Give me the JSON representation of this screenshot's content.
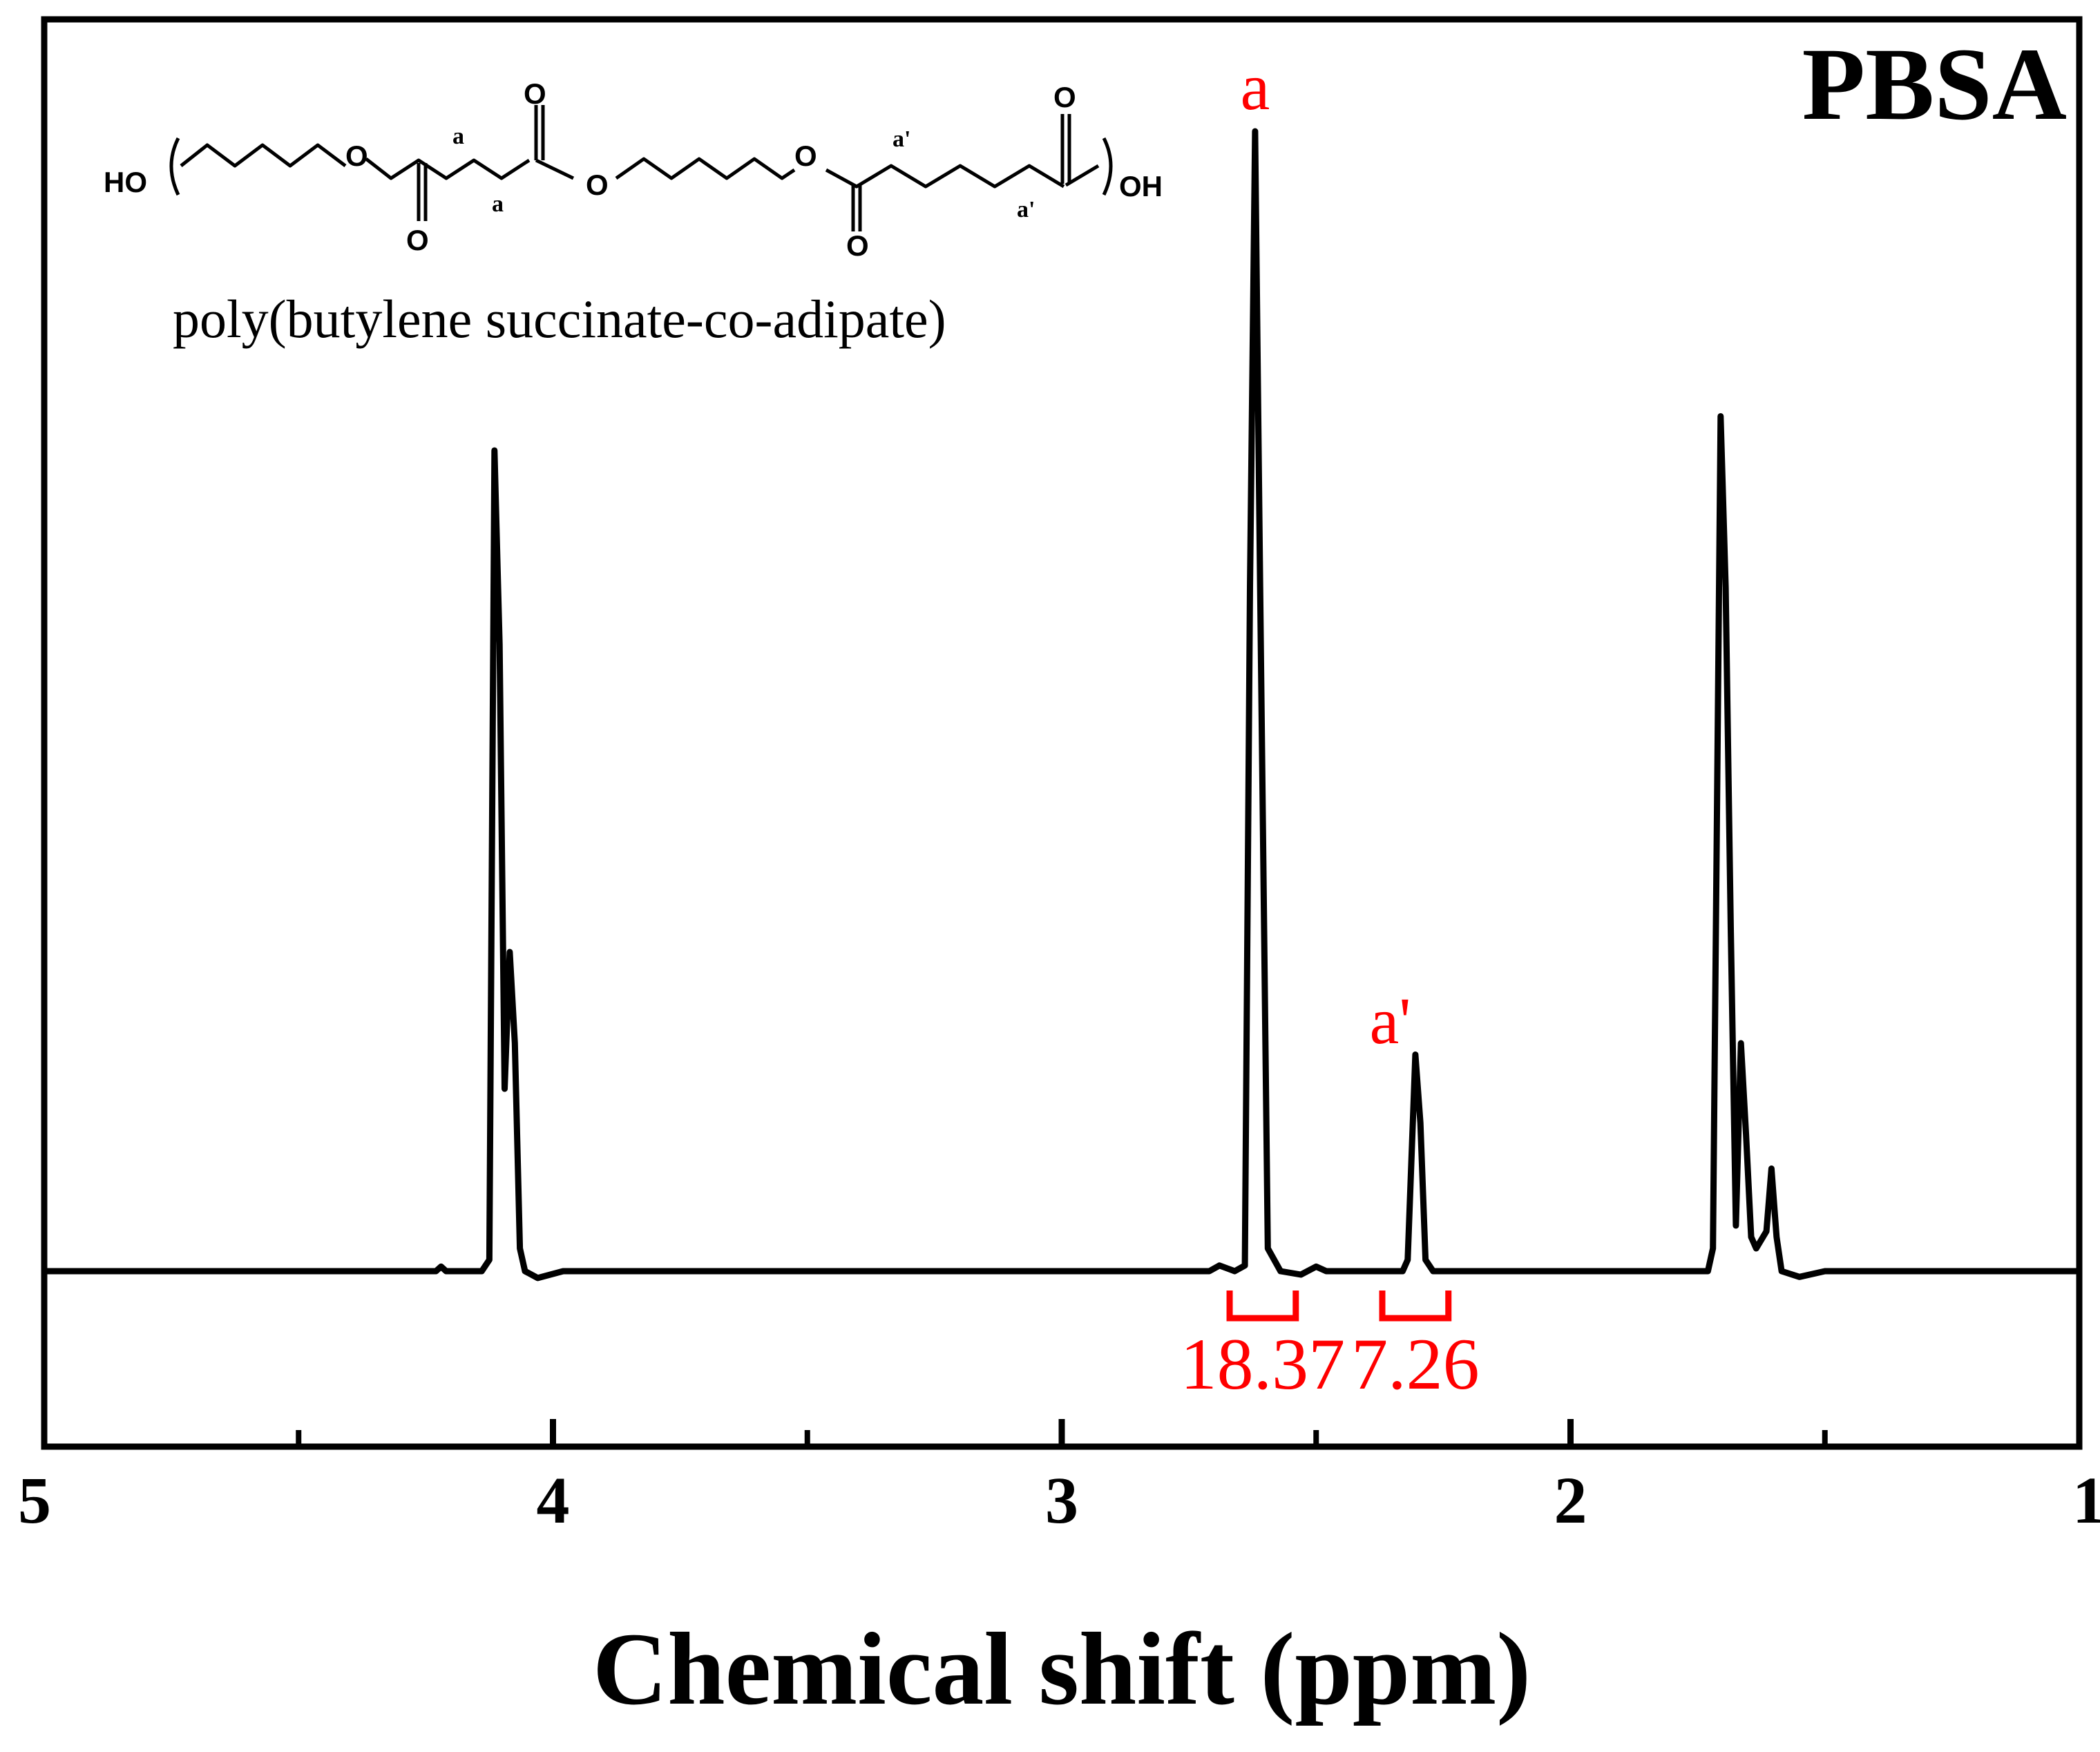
{
  "chart_data": {
    "type": "line",
    "title": "PBSA",
    "xlabel": "Chemical shift (ppm)",
    "ylabel": "",
    "xlim": [
      5,
      1
    ],
    "x_reversed": true,
    "xticks": [
      "5",
      "4",
      "3",
      "2",
      "1"
    ],
    "yticks_shown": false,
    "grid": false,
    "series": [
      {
        "points": [
          [
            5.0,
            0.0
          ],
          [
            4.23,
            0.0
          ],
          [
            4.22,
            0.004
          ],
          [
            4.21,
            0.0
          ],
          [
            4.14,
            0.0
          ],
          [
            4.125,
            0.01
          ],
          [
            4.115,
            0.72
          ],
          [
            4.105,
            0.55
          ],
          [
            4.095,
            0.16
          ],
          [
            4.085,
            0.28
          ],
          [
            4.075,
            0.2
          ],
          [
            4.065,
            0.02
          ],
          [
            4.055,
            0.0
          ],
          [
            4.03,
            -0.006
          ],
          [
            3.98,
            0.0
          ],
          [
            2.71,
            0.0
          ],
          [
            2.69,
            0.005
          ],
          [
            2.66,
            0.0
          ],
          [
            2.64,
            0.005
          ],
          [
            2.63,
            0.6
          ],
          [
            2.62,
            1.0
          ],
          [
            2.61,
            0.6
          ],
          [
            2.595,
            0.02
          ],
          [
            2.57,
            0.0
          ],
          [
            2.53,
            -0.003
          ],
          [
            2.5,
            0.004
          ],
          [
            2.48,
            0.0
          ],
          [
            2.33,
            0.0
          ],
          [
            2.32,
            0.01
          ],
          [
            2.305,
            0.19
          ],
          [
            2.295,
            0.13
          ],
          [
            2.285,
            0.01
          ],
          [
            2.27,
            0.0
          ],
          [
            1.73,
            0.0
          ],
          [
            1.72,
            0.02
          ],
          [
            1.705,
            0.75
          ],
          [
            1.695,
            0.6
          ],
          [
            1.685,
            0.3
          ],
          [
            1.675,
            0.04
          ],
          [
            1.665,
            0.2
          ],
          [
            1.655,
            0.12
          ],
          [
            1.645,
            0.03
          ],
          [
            1.635,
            0.02
          ],
          [
            1.615,
            0.035
          ],
          [
            1.605,
            0.09
          ],
          [
            1.595,
            0.03
          ],
          [
            1.585,
            0.0
          ],
          [
            1.55,
            -0.005
          ],
          [
            1.5,
            0.0
          ],
          [
            1.0,
            0.0
          ]
        ]
      }
    ],
    "annotations": [
      {
        "text": "a",
        "x": 2.62
      },
      {
        "text": "a'",
        "x": 2.3
      }
    ],
    "integrals": [
      {
        "value": "18.37",
        "from": 2.67,
        "to": 2.54
      },
      {
        "value": "7.26",
        "from": 2.37,
        "to": 2.24
      }
    ],
    "colors": {
      "spectrum": "#000000",
      "annotation": "#ff0000",
      "axis": "#000000"
    }
  },
  "structure": {
    "left_end": "HO",
    "right_end": "OH",
    "oxygen": "O",
    "label_a": "a",
    "label_a_prime": "a'",
    "name": "poly(butylene succinate-co-adipate)"
  }
}
